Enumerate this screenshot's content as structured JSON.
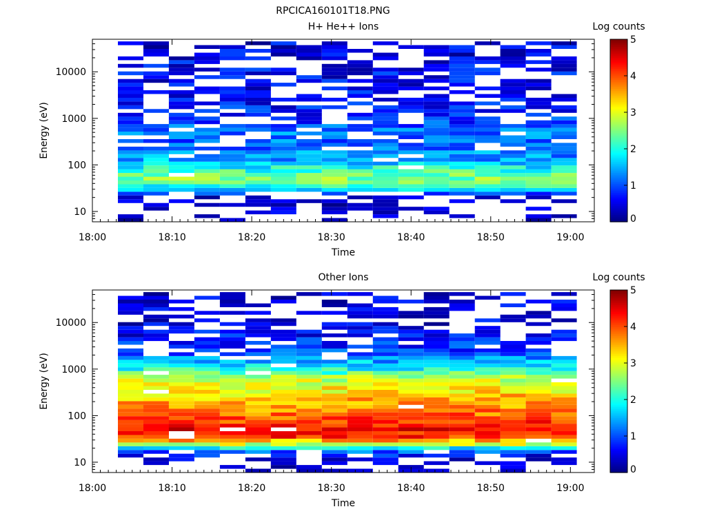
{
  "figure_title": "RPCICA160101T18.PNG",
  "colors": {
    "cmap": [
      "#00007f",
      "#0000ff",
      "#007fff",
      "#00ffff",
      "#7fff7f",
      "#ffff00",
      "#ff7f00",
      "#ff0000",
      "#7f0000"
    ]
  },
  "chart_data": [
    {
      "type": "heatmap",
      "title": "H+ He++ Ions",
      "xlabel": "Time",
      "ylabel": "Energy (eV)",
      "colorbar_label": "Log counts",
      "colorbar_ticks": [
        "0",
        "1",
        "2",
        "3",
        "4",
        "5"
      ],
      "color_range": [
        0,
        5
      ],
      "x_ticks": [
        "18:00",
        "18:10",
        "18:20",
        "18:30",
        "18:40",
        "18:50",
        "19:00"
      ],
      "x_range_minutes": [
        0,
        63
      ],
      "y_scale": "log",
      "y_ticks": [
        "10",
        "100",
        "1000",
        "10000"
      ],
      "y_range": [
        6,
        50000
      ],
      "time_bins_start_minutes": [
        3.2,
        6.4,
        9.6,
        12.8,
        16.0,
        19.2,
        22.4,
        25.6,
        28.8,
        32.0,
        35.2,
        38.4,
        41.6,
        44.8,
        48.0,
        51.2,
        54.4,
        57.6
      ],
      "time_bin_width_minutes": 3.2,
      "energy_range_eV": [
        6,
        45000
      ],
      "energy_bins": 48,
      "profile_log_counts": [
        {
          "energy_eV": 9,
          "value": 0.3
        },
        {
          "energy_eV": 15,
          "value": 0.2
        },
        {
          "energy_eV": 22,
          "value": 0.4
        },
        {
          "energy_eV": 30,
          "value": 1.7
        },
        {
          "energy_eV": 45,
          "value": 2.6
        },
        {
          "energy_eV": 70,
          "value": 2.2
        },
        {
          "energy_eV": 120,
          "value": 1.5
        },
        {
          "energy_eV": 250,
          "value": 1.1
        },
        {
          "energy_eV": 500,
          "value": 1.2
        },
        {
          "energy_eV": 1000,
          "value": 0.8
        },
        {
          "energy_eV": 3000,
          "value": 0.6
        },
        {
          "energy_eV": 10000,
          "value": 0.6
        },
        {
          "energy_eV": 40000,
          "value": 0.5
        }
      ]
    },
    {
      "type": "heatmap",
      "title": "Other Ions",
      "xlabel": "Time",
      "ylabel": "Energy (eV)",
      "colorbar_label": "Log counts",
      "colorbar_ticks": [
        "0",
        "1",
        "2",
        "3",
        "4",
        "5"
      ],
      "color_range": [
        0,
        5
      ],
      "x_ticks": [
        "18:00",
        "18:10",
        "18:20",
        "18:30",
        "18:40",
        "18:50",
        "19:00"
      ],
      "x_range_minutes": [
        0,
        63
      ],
      "y_scale": "log",
      "y_ticks": [
        "10",
        "100",
        "1000",
        "10000"
      ],
      "y_range": [
        6,
        50000
      ],
      "time_bins_start_minutes": [
        3.2,
        6.4,
        9.6,
        12.8,
        16.0,
        19.2,
        22.4,
        25.6,
        28.8,
        32.0,
        35.2,
        38.4,
        41.6,
        44.8,
        48.0,
        51.2,
        54.4,
        57.6
      ],
      "time_bin_width_minutes": 3.2,
      "energy_range_eV": [
        6,
        45000
      ],
      "energy_bins": 48,
      "profile_log_counts": [
        {
          "energy_eV": 8,
          "value": 0.2
        },
        {
          "energy_eV": 12,
          "value": 0.4
        },
        {
          "energy_eV": 18,
          "value": 1.2
        },
        {
          "energy_eV": 24,
          "value": 2.8
        },
        {
          "energy_eV": 35,
          "value": 4.2
        },
        {
          "energy_eV": 50,
          "value": 4.4
        },
        {
          "energy_eV": 100,
          "value": 3.9
        },
        {
          "energy_eV": 250,
          "value": 3.4
        },
        {
          "energy_eV": 600,
          "value": 2.8
        },
        {
          "energy_eV": 1200,
          "value": 1.7
        },
        {
          "energy_eV": 2500,
          "value": 0.9
        },
        {
          "energy_eV": 8000,
          "value": 0.5
        },
        {
          "energy_eV": 40000,
          "value": 0.4
        }
      ]
    }
  ]
}
